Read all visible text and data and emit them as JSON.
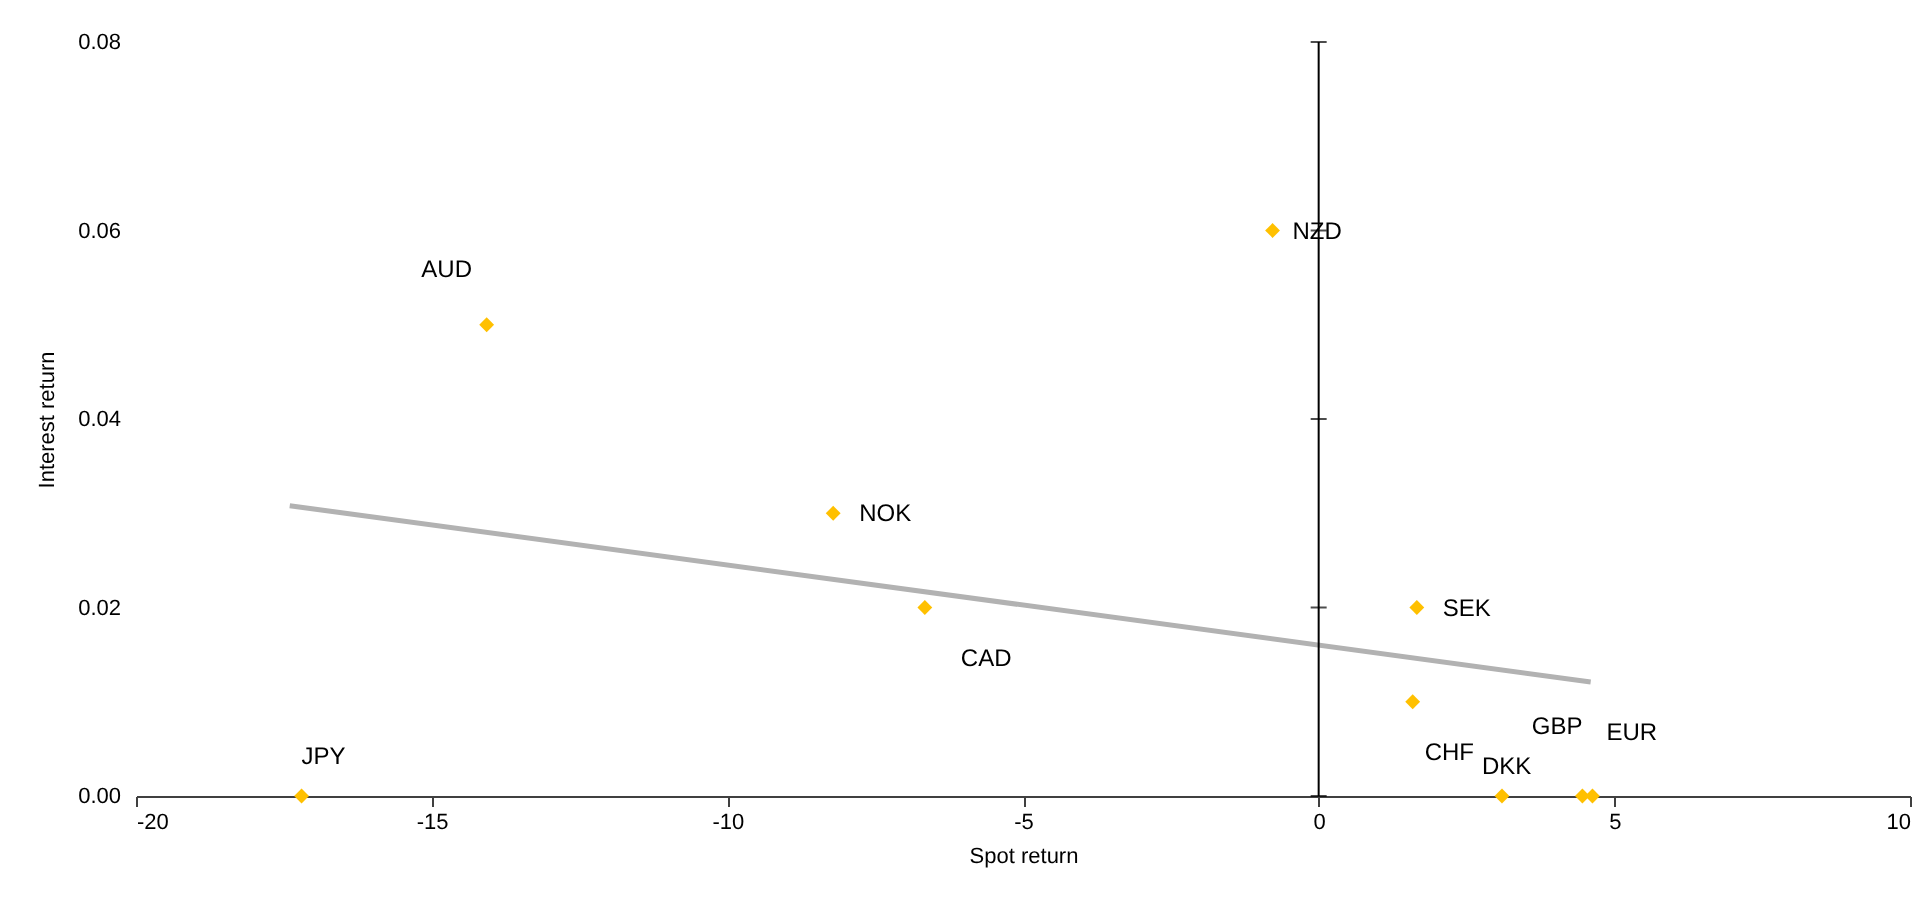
{
  "chart_data": {
    "type": "scatter",
    "xlabel": "Spot return",
    "ylabel": "Interest return",
    "xlim": [
      -20,
      10
    ],
    "xticks": [
      -20,
      -15,
      -10,
      -5,
      0,
      5,
      10
    ],
    "ylim": [
      0,
      0.08
    ],
    "yticks": [
      {
        "value": 0,
        "label": "0.00"
      },
      {
        "value": 0.02,
        "label": "0.02"
      },
      {
        "value": 0.04,
        "label": "0.04"
      },
      {
        "value": 0.06,
        "label": "0.06"
      },
      {
        "value": 0.08,
        "label": "0.08"
      }
    ],
    "marker": "diamond",
    "grid": false,
    "legend": false,
    "ref_lines": [
      {
        "axis": "x",
        "value": 0,
        "color": "#000000"
      }
    ],
    "series": [
      {
        "name": "AUD",
        "color": "#ffc000",
        "x": [
          -14.07
        ],
        "values": [
          0.05
        ]
      },
      {
        "name": "NZD",
        "color": "#ffc000",
        "x": [
          -0.78
        ],
        "values": [
          0.06
        ]
      },
      {
        "name": "NOK",
        "color": "#ffc000",
        "x": [
          -8.21
        ],
        "values": [
          0.03
        ]
      },
      {
        "name": "CAD",
        "color": "#ffc000",
        "x": [
          -6.66
        ],
        "values": [
          0.02
        ]
      },
      {
        "name": "SEK",
        "color": "#ffc000",
        "x": [
          1.66
        ],
        "values": [
          0.02
        ]
      },
      {
        "name": "GBP",
        "color": "#ffc000",
        "x": [
          4.63
        ],
        "values": [
          0.0
        ]
      },
      {
        "name": "CHF",
        "color": "#ffc000",
        "x": [
          1.59
        ],
        "values": [
          0.01
        ]
      },
      {
        "name": "EUR",
        "color": "#ffc000",
        "x": [
          4.46
        ],
        "values": [
          0.0
        ]
      },
      {
        "name": "DKK",
        "color": "#ffc000",
        "x": [
          3.1
        ],
        "values": [
          0.0
        ]
      },
      {
        "name": "JPY",
        "color": "#ffc000",
        "x": [
          -17.2
        ],
        "values": [
          0.0
        ]
      },
      {
        "type": "line",
        "marker": "none",
        "color": "#b2b2b2",
        "x": [
          -17.4,
          4.6
        ],
        "values": [
          0.0308,
          0.0121
        ]
      }
    ]
  }
}
